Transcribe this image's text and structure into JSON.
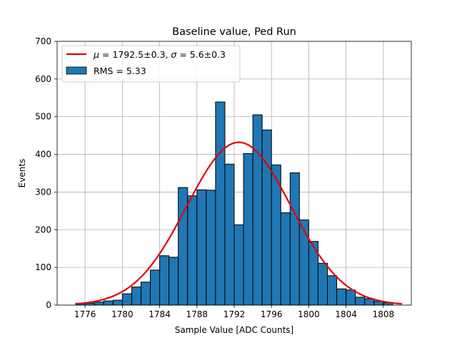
{
  "chart_data": {
    "type": "bar",
    "title": "Baseline value, Ped Run",
    "xlabel": "Sample Value [ADC Counts]",
    "ylabel": "Events",
    "xlim": [
      1773,
      1811
    ],
    "ylim": [
      0,
      700
    ],
    "xticks": [
      1776,
      1780,
      1784,
      1788,
      1792,
      1796,
      1800,
      1804,
      1808
    ],
    "yticks": [
      0,
      100,
      200,
      300,
      400,
      500,
      600,
      700
    ],
    "grid": true,
    "bin_width": 1,
    "bin_starts": [
      1775,
      1776,
      1777,
      1778,
      1779,
      1780,
      1781,
      1782,
      1783,
      1784,
      1785,
      1786,
      1787,
      1788,
      1789,
      1790,
      1791,
      1792,
      1793,
      1794,
      1795,
      1796,
      1797,
      1798,
      1799,
      1800,
      1801,
      1802,
      1803,
      1804,
      1805,
      1806,
      1807,
      1808
    ],
    "counts": [
      5,
      5,
      8,
      11,
      13,
      30,
      48,
      61,
      93,
      131,
      127,
      312,
      290,
      306,
      305,
      539,
      374,
      213,
      402,
      505,
      465,
      372,
      245,
      351,
      226,
      169,
      111,
      78,
      43,
      40,
      21,
      17,
      10,
      6
    ],
    "fit": {
      "type": "gaussian",
      "mu": 1792.5,
      "sigma": 5.6,
      "peak": 432,
      "x_range": [
        1775,
        1810
      ]
    },
    "legend": {
      "position": "top-left",
      "entries": [
        {
          "mu_label": "μ",
          "mu_text": " = 1792.5±0.3, ",
          "sigma_label": "σ",
          "sigma_text": " = 5.6±0.3",
          "color": "#e00000",
          "style": "line"
        },
        {
          "label": "RMS = 5.33",
          "color": "#1f77b4",
          "style": "patch"
        }
      ]
    },
    "colors": {
      "bars": "#1f77b4",
      "bar_edge": "#000000",
      "fit": "#e00000",
      "grid": "#b0b0b0"
    }
  }
}
